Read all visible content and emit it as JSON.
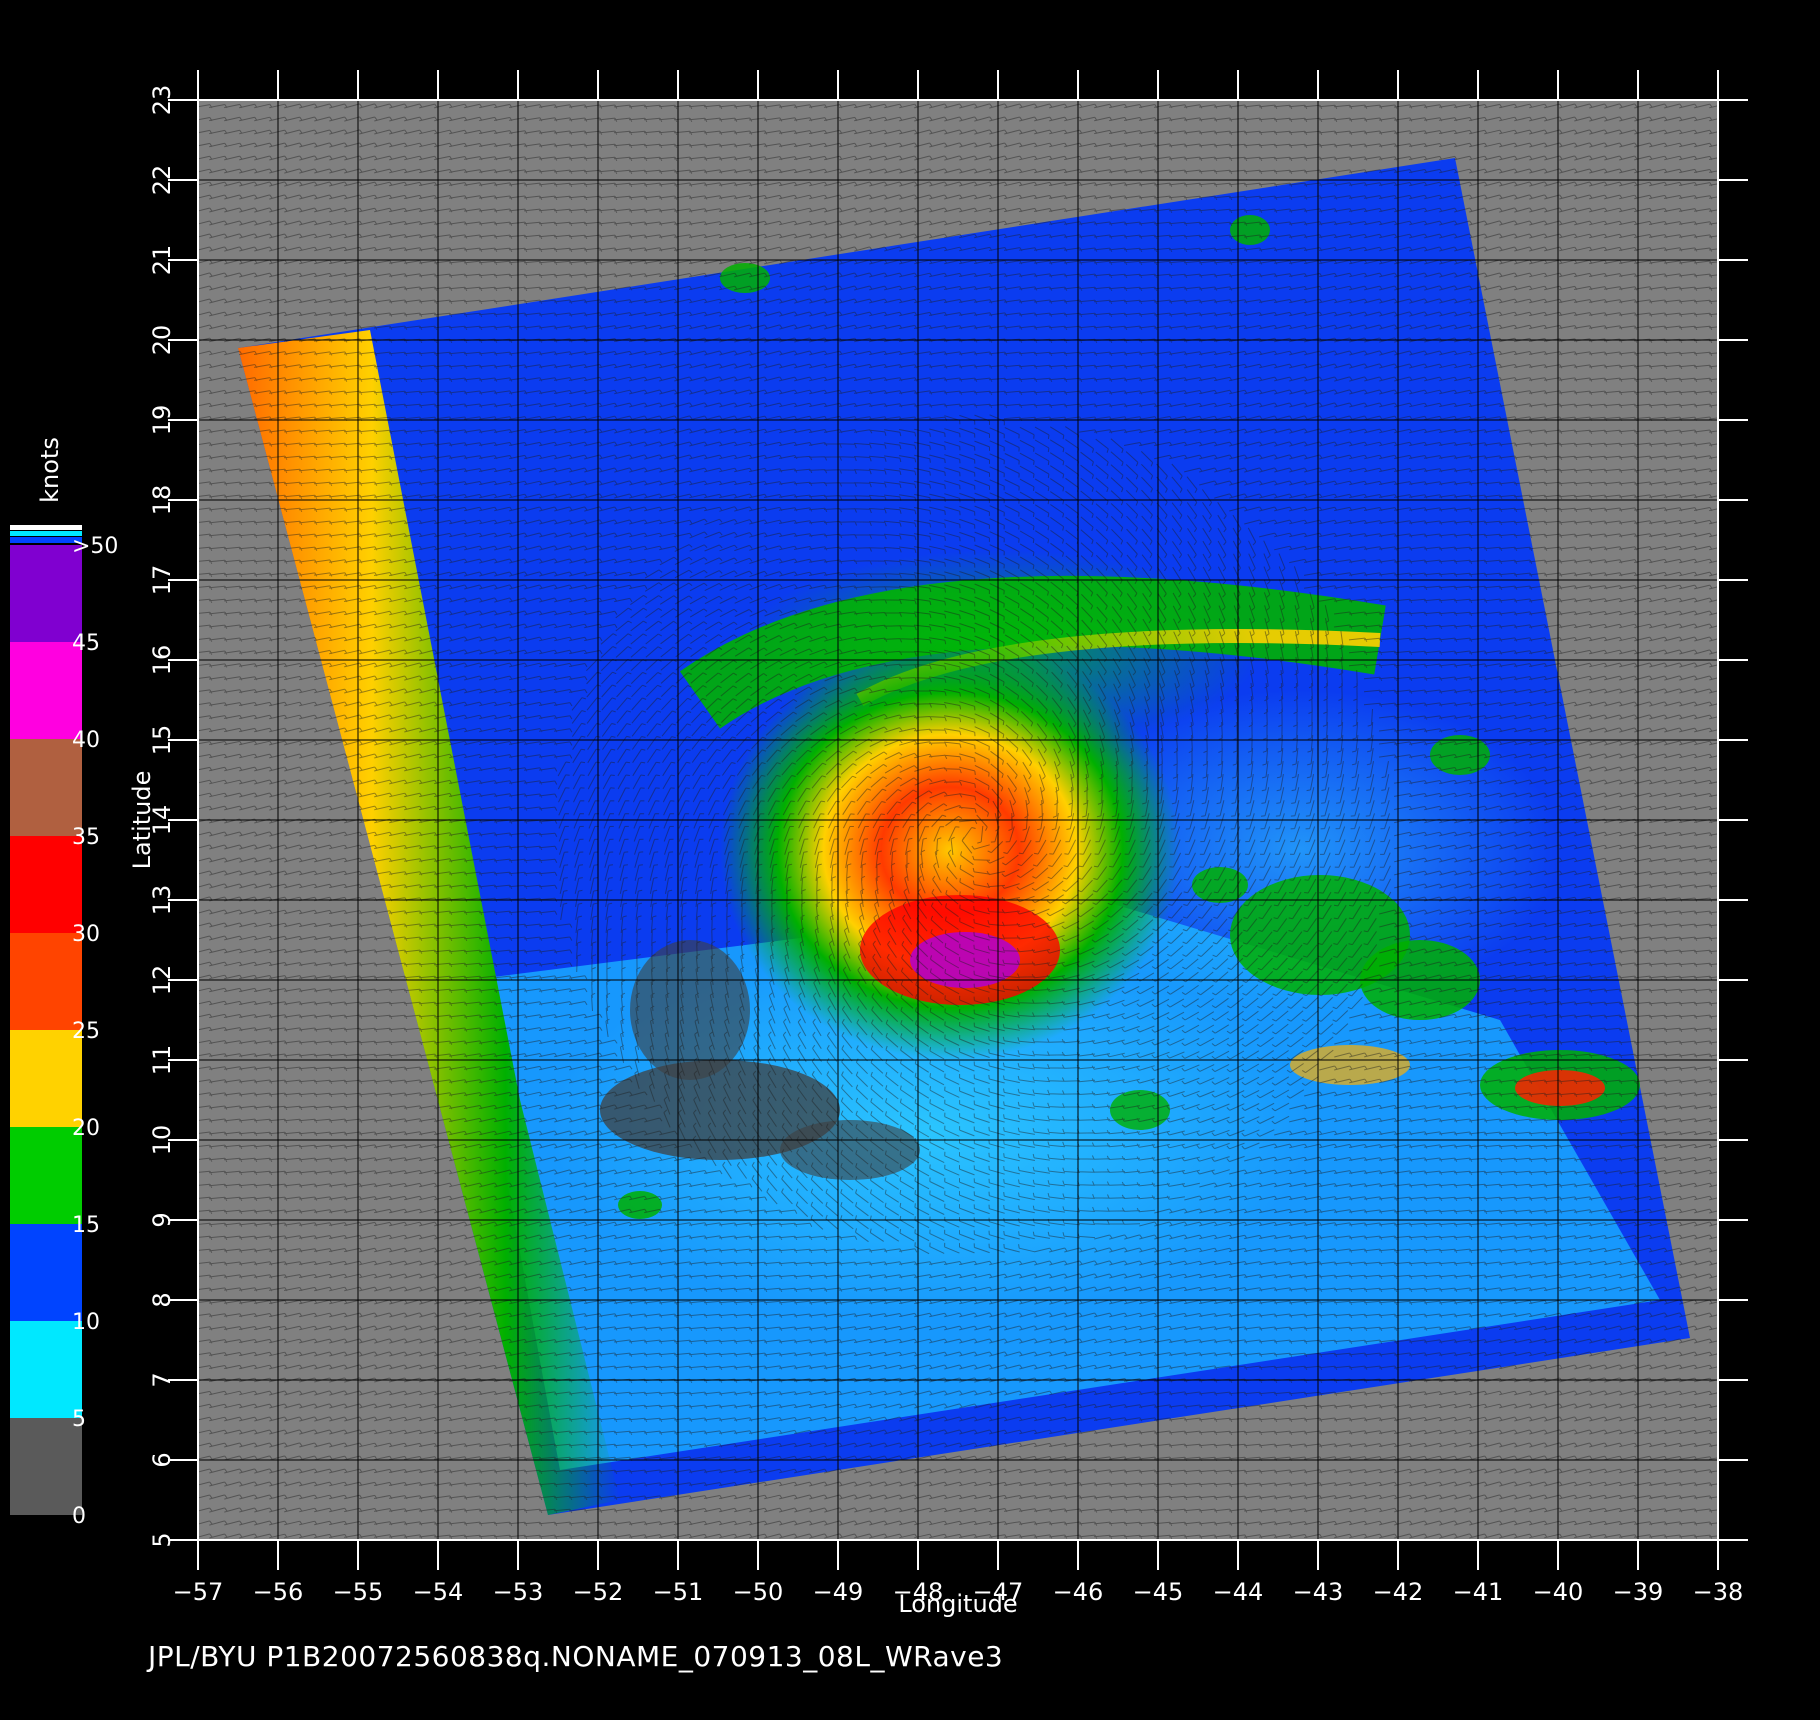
{
  "map": {
    "x_axis_label": "Longitude",
    "y_axis_label": "Latitude",
    "lon_range": [
      -57,
      -38
    ],
    "lat_range": [
      5,
      23
    ],
    "lon_ticks": [
      "−57",
      "−56",
      "−55",
      "−54",
      "−53",
      "−52",
      "−51",
      "−50",
      "−49",
      "−48",
      "−47",
      "−46",
      "−45",
      "−44",
      "−43",
      "−42",
      "−41",
      "−40",
      "−39",
      "−38"
    ],
    "lat_ticks": [
      "5",
      "6",
      "7",
      "8",
      "9",
      "10",
      "11",
      "12",
      "13",
      "14",
      "15",
      "16",
      "17",
      "18",
      "19",
      "20",
      "21",
      "22",
      "23"
    ],
    "storm_center": {
      "lon": -47.3,
      "lat": 13.8
    },
    "land_mask_color": "#808080",
    "background_color": "#000000"
  },
  "colorbar": {
    "units": "knots",
    "labels": [
      "0",
      "5",
      "10",
      "15",
      "20",
      "25",
      "30",
      "35",
      "40",
      "45",
      ">50"
    ],
    "colors": [
      "#5a5a5a",
      "#00e8ff",
      "#0044ff",
      "#00cc00",
      "#ffd200",
      "#ff4400",
      "#ff0000",
      "#b06040",
      "#ff00e0",
      "#8000d0"
    ]
  },
  "footer": {
    "text": "JPL/BYU  P1B20072560838q.NONAME_070913_08L_WRave3"
  }
}
